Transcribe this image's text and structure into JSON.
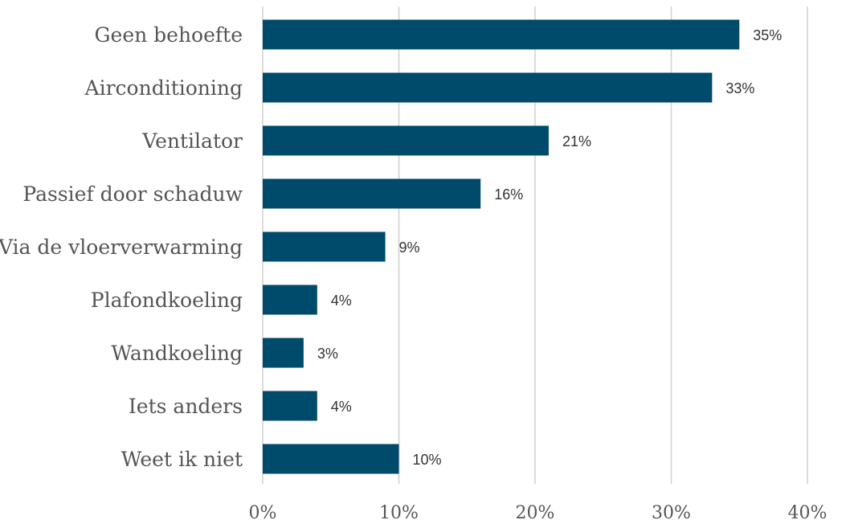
{
  "chart_data": {
    "type": "bar",
    "orientation": "horizontal",
    "categories": [
      "Geen behoefte",
      "Airconditioning",
      "Ventilator",
      "Passief door schaduw",
      "Via de vloerverwarming",
      "Plafondkoeling",
      "Wandkoeling",
      "Iets anders",
      "Weet ik niet"
    ],
    "values": [
      35,
      33,
      21,
      16,
      9,
      4,
      3,
      4,
      10
    ],
    "data_labels": [
      "35%",
      "33%",
      "21%",
      "16%",
      "9%",
      "4%",
      "3%",
      "4%",
      "10%"
    ],
    "x_ticks": [
      "0%",
      "10%",
      "20%",
      "30%",
      "40%"
    ],
    "xlim": [
      0,
      40
    ],
    "grid": true,
    "bar_color": "#004a6c",
    "title": "",
    "xlabel": "",
    "ylabel": ""
  }
}
